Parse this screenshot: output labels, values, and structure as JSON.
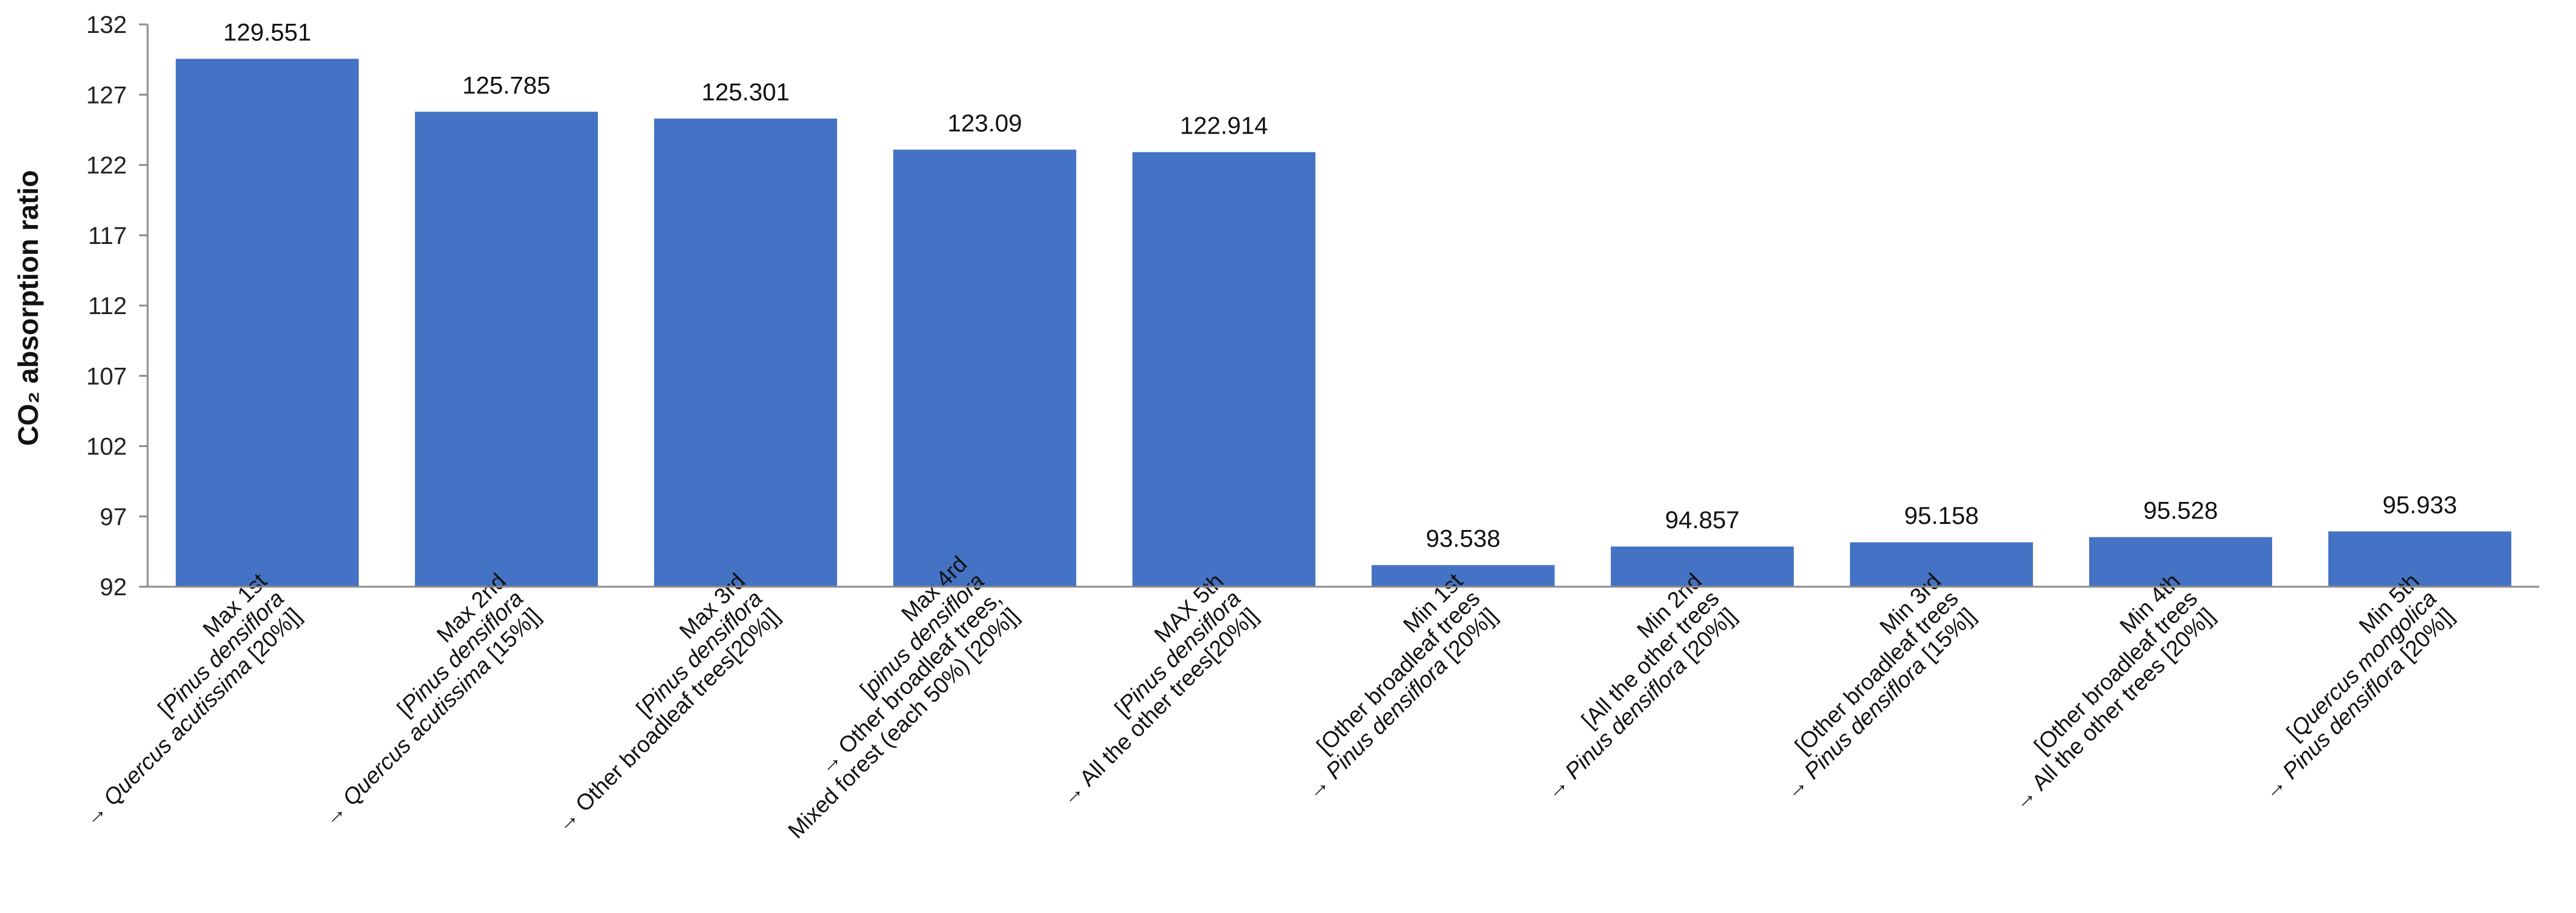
{
  "chart_data": {
    "type": "bar",
    "ylabel": "CO₂ absorption ratio",
    "ylim": [
      92,
      132
    ],
    "yticks": [
      92,
      97,
      102,
      107,
      112,
      117,
      122,
      127,
      132
    ],
    "grid": false,
    "legend": "none",
    "bar_color": "#4472c4",
    "values": [
      129.551,
      125.785,
      125.301,
      123.09,
      122.914,
      93.538,
      94.857,
      95.158,
      95.528,
      95.933
    ],
    "value_labels": [
      "129.551",
      "125.785",
      "125.301",
      "123.09",
      "122.914",
      "93.538",
      "94.857",
      "95.158",
      "95.528",
      "95.933"
    ],
    "categories": [
      [
        {
          "t": "Max 1st"
        },
        {
          "t": "[",
          "s": [
            {
              "t": "Pinus densiflora",
              "i": true
            }
          ]
        },
        {
          "t": "→ ",
          "s": [
            {
              "t": "Quercus acutissima",
              "i": true
            },
            {
              "t": " [20%]]"
            }
          ]
        }
      ],
      [
        {
          "t": "Max 2nd"
        },
        {
          "t": "[",
          "s": [
            {
              "t": "Pinus densiflora",
              "i": true
            }
          ]
        },
        {
          "t": "→ ",
          "s": [
            {
              "t": "Quercus acutissima",
              "i": true
            },
            {
              "t": " [15%]]"
            }
          ]
        }
      ],
      [
        {
          "t": "Max 3rd"
        },
        {
          "t": "[",
          "s": [
            {
              "t": "Pinus densiflora",
              "i": true
            }
          ]
        },
        {
          "t": "→ Other broadleaf  trees[20%]]"
        }
      ],
      [
        {
          "t": "Max 4rd"
        },
        {
          "t": "[",
          "s": [
            {
              "t": "pinus densiflora",
              "i": true
            }
          ]
        },
        {
          "t": "→ Other broadleaf trees,"
        },
        {
          "t": "Mixed forest (each 50%) [20%]]"
        }
      ],
      [
        {
          "t": "MAX 5th"
        },
        {
          "t": "[",
          "s": [
            {
              "t": "Pinus densiflora",
              "i": true
            }
          ]
        },
        {
          "t": "→ All the other trees[20%]]"
        }
      ],
      [
        {
          "t": "Min 1st"
        },
        {
          "t": "[Other broadleaf trees"
        },
        {
          "t": "→ ",
          "s": [
            {
              "t": "Pinus densiflora",
              "i": true
            },
            {
              "t": " [20%]]"
            }
          ]
        }
      ],
      [
        {
          "t": "Min 2nd"
        },
        {
          "t": "[All the other trees"
        },
        {
          "t": "→ ",
          "s": [
            {
              "t": "Pinus densiflora",
              "i": true
            },
            {
              "t": " [20%]]"
            }
          ]
        }
      ],
      [
        {
          "t": "Min 3rd"
        },
        {
          "t": "[Other broadleaf trees"
        },
        {
          "t": "→ ",
          "s": [
            {
              "t": "Pinus densiflora",
              "i": true
            },
            {
              "t": " [15%]]"
            }
          ]
        }
      ],
      [
        {
          "t": "Min 4th"
        },
        {
          "t": "[Other broadleaf trees"
        },
        {
          "t": "→ All the other trees  [20%]]"
        }
      ],
      [
        {
          "t": "Min 5th"
        },
        {
          "t": "[",
          "s": [
            {
              "t": "Quercus  mongolica",
              "i": true
            }
          ]
        },
        {
          "t": "→ ",
          "s": [
            {
              "t": "Pinus densiflora",
              "i": true
            },
            {
              "t": " [20%]]"
            }
          ]
        }
      ]
    ]
  }
}
